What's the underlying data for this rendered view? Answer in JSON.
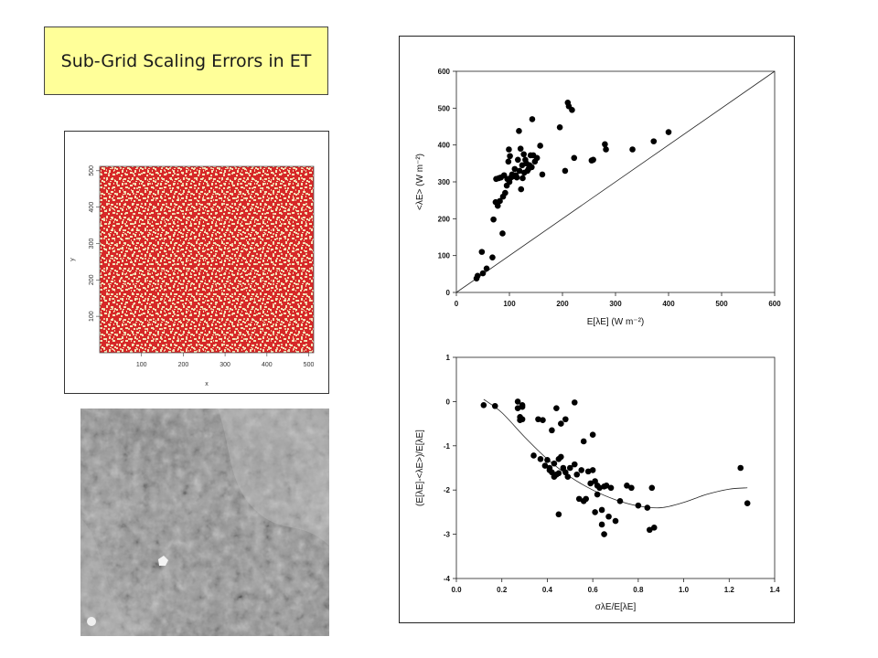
{
  "slide": {
    "title": "Sub-Grid Scaling Errors in ET"
  },
  "random_field": {
    "xlabel": "x",
    "ylabel": "y",
    "xticks": [
      "100",
      "200",
      "300",
      "400",
      "500"
    ],
    "yticks": [
      "100",
      "200",
      "300",
      "400",
      "500"
    ],
    "colors": {
      "field": "#d62828",
      "speck": "#f3e2b8"
    }
  },
  "chart_data": [
    {
      "type": "scatter",
      "xlabel": "E[λE] (W m⁻²)",
      "ylabel": "<λE> (W m⁻²)",
      "xlim": [
        0,
        600
      ],
      "ylim": [
        0,
        600
      ],
      "xticks": [
        0,
        100,
        200,
        300,
        400,
        500,
        600
      ],
      "yticks": [
        0,
        100,
        200,
        300,
        400,
        500,
        600
      ],
      "reference_line": "1:1",
      "series": [
        {
          "points": [
            [
              38,
              38
            ],
            [
              40,
              45
            ],
            [
              48,
              110
            ],
            [
              50,
              52
            ],
            [
              57,
              65
            ],
            [
              68,
              95
            ],
            [
              70,
              198
            ],
            [
              74,
              245
            ],
            [
              75,
              308
            ],
            [
              78,
              235
            ],
            [
              80,
              310
            ],
            [
              82,
              248
            ],
            [
              84,
              312
            ],
            [
              87,
              160
            ],
            [
              88,
              260
            ],
            [
              90,
              318
            ],
            [
              92,
              270
            ],
            [
              95,
              290
            ],
            [
              96,
              308
            ],
            [
              98,
              355
            ],
            [
              99,
              388
            ],
            [
              100,
              300
            ],
            [
              101,
              370
            ],
            [
              103,
              312
            ],
            [
              105,
              320
            ],
            [
              107,
              315
            ],
            [
              110,
              335
            ],
            [
              112,
              318
            ],
            [
              114,
              312
            ],
            [
              116,
              360
            ],
            [
              118,
              438
            ],
            [
              119,
              330
            ],
            [
              121,
              390
            ],
            [
              122,
              280
            ],
            [
              124,
              345
            ],
            [
              125,
              310
            ],
            [
              127,
              375
            ],
            [
              128,
              325
            ],
            [
              130,
              360
            ],
            [
              132,
              350
            ],
            [
              134,
              330
            ],
            [
              136,
              335
            ],
            [
              138,
              345
            ],
            [
              140,
              372
            ],
            [
              142,
              340
            ],
            [
              143,
              470
            ],
            [
              145,
              372
            ],
            [
              148,
              355
            ],
            [
              152,
              365
            ],
            [
              158,
              398
            ],
            [
              162,
              320
            ],
            [
              195,
              448
            ],
            [
              205,
              330
            ],
            [
              210,
              515
            ],
            [
              212,
              505
            ],
            [
              218,
              495
            ],
            [
              222,
              365
            ],
            [
              255,
              358
            ],
            [
              258,
              360
            ],
            [
              280,
              402
            ],
            [
              282,
              388
            ],
            [
              332,
              388
            ],
            [
              372,
              410
            ],
            [
              400,
              435
            ]
          ]
        }
      ]
    },
    {
      "type": "scatter",
      "xlabel": "σλE/E[λE]",
      "ylabel": "(E[λE]-<λE>)/E[λE]",
      "xlim": [
        0.0,
        1.4
      ],
      "ylim": [
        -4,
        1
      ],
      "xticks": [
        "0.0",
        "0.2",
        "0.4",
        "0.6",
        "0.8",
        "1.0",
        "1.2",
        "1.4"
      ],
      "yticks": [
        "-4",
        "-3",
        "-2",
        "-1",
        "0",
        "1"
      ],
      "fit_curve": "smooth",
      "series": [
        {
          "points": [
            [
              0.12,
              -0.08
            ],
            [
              0.17,
              -0.1
            ],
            [
              0.27,
              0.0
            ],
            [
              0.27,
              -0.15
            ],
            [
              0.28,
              -0.35
            ],
            [
              0.28,
              -0.42
            ],
            [
              0.29,
              -0.08
            ],
            [
              0.29,
              -0.12
            ],
            [
              0.29,
              -0.4
            ],
            [
              0.34,
              -1.22
            ],
            [
              0.36,
              -0.4
            ],
            [
              0.37,
              -1.3
            ],
            [
              0.38,
              -0.42
            ],
            [
              0.39,
              -1.45
            ],
            [
              0.4,
              -1.32
            ],
            [
              0.41,
              -1.5
            ],
            [
              0.41,
              -1.55
            ],
            [
              0.42,
              -0.65
            ],
            [
              0.42,
              -1.6
            ],
            [
              0.43,
              -1.4
            ],
            [
              0.43,
              -1.7
            ],
            [
              0.44,
              -0.15
            ],
            [
              0.44,
              -1.65
            ],
            [
              0.45,
              -1.3
            ],
            [
              0.45,
              -1.62
            ],
            [
              0.45,
              -2.55
            ],
            [
              0.46,
              -0.5
            ],
            [
              0.46,
              -1.25
            ],
            [
              0.47,
              -1.5
            ],
            [
              0.48,
              -0.4
            ],
            [
              0.48,
              -1.6
            ],
            [
              0.49,
              -1.7
            ],
            [
              0.5,
              -1.5
            ],
            [
              0.52,
              -0.02
            ],
            [
              0.52,
              -1.42
            ],
            [
              0.53,
              -1.65
            ],
            [
              0.54,
              -2.2
            ],
            [
              0.55,
              -1.55
            ],
            [
              0.56,
              -0.9
            ],
            [
              0.56,
              -2.25
            ],
            [
              0.57,
              -2.2
            ],
            [
              0.58,
              -1.58
            ],
            [
              0.59,
              -1.85
            ],
            [
              0.6,
              -0.75
            ],
            [
              0.6,
              -1.55
            ],
            [
              0.61,
              -1.8
            ],
            [
              0.61,
              -2.5
            ],
            [
              0.62,
              -1.9
            ],
            [
              0.62,
              -2.1
            ],
            [
              0.63,
              -1.95
            ],
            [
              0.64,
              -2.45
            ],
            [
              0.64,
              -2.78
            ],
            [
              0.65,
              -1.92
            ],
            [
              0.65,
              -3.0
            ],
            [
              0.66,
              -1.9
            ],
            [
              0.67,
              -2.6
            ],
            [
              0.68,
              -1.95
            ],
            [
              0.7,
              -2.7
            ],
            [
              0.72,
              -2.25
            ],
            [
              0.75,
              -1.9
            ],
            [
              0.77,
              -1.95
            ],
            [
              0.8,
              -2.35
            ],
            [
              0.84,
              -2.4
            ],
            [
              0.85,
              -2.9
            ],
            [
              0.86,
              -1.95
            ],
            [
              0.87,
              -2.85
            ],
            [
              1.25,
              -1.5
            ],
            [
              1.28,
              -2.3
            ]
          ]
        }
      ],
      "curve_points": [
        [
          0.12,
          0.05
        ],
        [
          0.2,
          -0.25
        ],
        [
          0.3,
          -0.8
        ],
        [
          0.4,
          -1.3
        ],
        [
          0.5,
          -1.7
        ],
        [
          0.6,
          -2.0
        ],
        [
          0.7,
          -2.22
        ],
        [
          0.8,
          -2.36
        ],
        [
          0.9,
          -2.4
        ],
        [
          1.0,
          -2.28
        ],
        [
          1.1,
          -2.1
        ],
        [
          1.2,
          -1.98
        ],
        [
          1.28,
          -1.95
        ]
      ]
    }
  ]
}
